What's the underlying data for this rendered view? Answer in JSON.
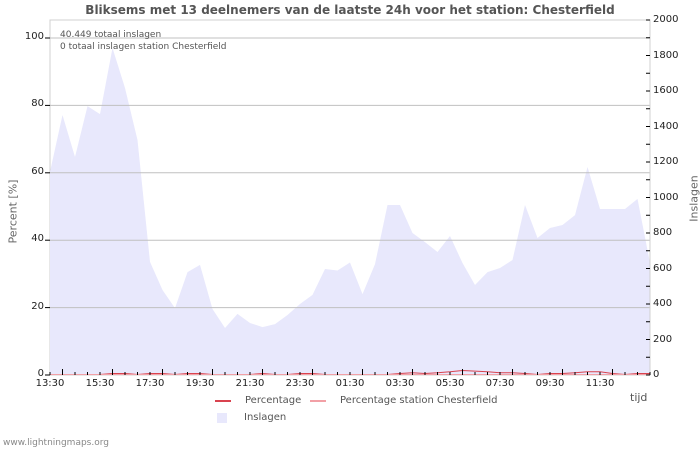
{
  "title": "Bliksems met 13 deelnemers van de laatste 24h voor het station: Chesterfield",
  "annotations": {
    "total": "40.449 totaal inslagen",
    "station_total": "0 totaal inslagen station Chesterfield"
  },
  "axes": {
    "left_title": "Percent   [%]",
    "right_title": "Inslagen",
    "x_title": "tijd",
    "left_ticks": [
      "0",
      "20",
      "40",
      "60",
      "80",
      "100"
    ],
    "right_ticks": [
      "0",
      "200",
      "400",
      "600",
      "800",
      "1000",
      "1200",
      "1400",
      "1600",
      "1800",
      "2000"
    ],
    "x_ticks": [
      "13:30",
      "15:30",
      "17:30",
      "19:30",
      "21:30",
      "23:30",
      "01:30",
      "03:30",
      "05:30",
      "07:30",
      "09:30",
      "11:30"
    ]
  },
  "legend": {
    "percentage": "Percentage",
    "percentage_station": "Percentage station Chesterfield",
    "strikes": "Inslagen"
  },
  "colors": {
    "strikes_fill": "#e8e8fc",
    "percentage": "#d9434f",
    "percentage_station": "#f2a0a6",
    "grid": "#c0c0c0"
  },
  "footer": "www.lightningmaps.org",
  "chart_data": {
    "type": "area",
    "title": "Bliksems met 13 deelnemers van de laatste 24h voor het station: Chesterfield",
    "xlabel": "tijd",
    "ylabel": "Percent [%]",
    "y2label": "Inslagen",
    "ylim": [
      0,
      105
    ],
    "y2lim": [
      0,
      2000
    ],
    "grid": true,
    "legend_position": "bottom",
    "x": [
      "13:00",
      "13:30",
      "14:00",
      "14:30",
      "15:00",
      "15:30",
      "16:00",
      "16:30",
      "17:00",
      "17:30",
      "18:00",
      "18:30",
      "19:00",
      "19:30",
      "20:00",
      "20:30",
      "21:00",
      "21:30",
      "22:00",
      "22:30",
      "23:00",
      "23:30",
      "00:00",
      "00:30",
      "01:00",
      "01:30",
      "02:00",
      "02:30",
      "03:00",
      "03:30",
      "04:00",
      "04:30",
      "05:00",
      "05:30",
      "06:00",
      "06:30",
      "07:00",
      "07:30",
      "08:00",
      "08:30",
      "09:00",
      "09:30",
      "10:00",
      "10:30",
      "11:00",
      "11:30",
      "12:00",
      "12:30",
      "13:00"
    ],
    "series": [
      {
        "name": "Inslagen",
        "axis": "right",
        "values": [
          1144,
          1465,
          1228,
          1515,
          1470,
          1842,
          1617,
          1324,
          637,
          479,
          377,
          580,
          620,
          372,
          265,
          344,
          293,
          270,
          287,
          338,
          400,
          451,
          597,
          589,
          634,
          456,
          625,
          958,
          958,
          800,
          749,
          693,
          783,
          631,
          507,
          580,
          603,
          648,
          958,
          772,
          828,
          845,
          901,
          1172,
          935,
          935,
          935,
          992,
          631
        ]
      },
      {
        "name": "Percentage",
        "axis": "left",
        "values": [
          0,
          0,
          0,
          0,
          0,
          0.3,
          0.3,
          0,
          0.3,
          0.3,
          0,
          0.3,
          0.3,
          0,
          0,
          0,
          0,
          0.3,
          0,
          0,
          0.3,
          0.3,
          0,
          0,
          0,
          0,
          0,
          0,
          0.3,
          0.5,
          0.3,
          0.5,
          0.8,
          1.2,
          1.0,
          0.8,
          0.5,
          0.5,
          0.3,
          0,
          0.3,
          0.3,
          0.5,
          0.8,
          0.8,
          0.3,
          0,
          0.3,
          0.3
        ]
      },
      {
        "name": "Percentage station Chesterfield",
        "axis": "left",
        "values": [
          0,
          0,
          0,
          0,
          0,
          0,
          0,
          0,
          0,
          0,
          0,
          0,
          0,
          0,
          0,
          0,
          0,
          0,
          0,
          0,
          0,
          0,
          0,
          0,
          0,
          0,
          0,
          0,
          0,
          0,
          0,
          0,
          0,
          0,
          0,
          0,
          0,
          0,
          0,
          0,
          0,
          0,
          0,
          0,
          0,
          0,
          0,
          0,
          0
        ]
      }
    ]
  }
}
